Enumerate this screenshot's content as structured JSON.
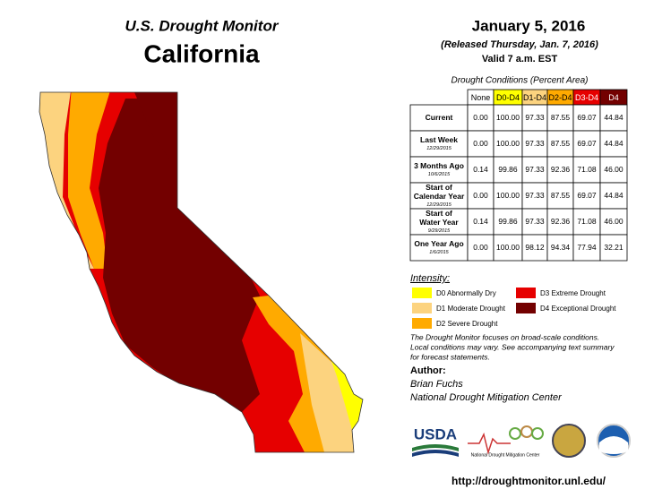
{
  "header": {
    "program": "U.S. Drought Monitor",
    "state": "California",
    "date": "January 5, 2016",
    "released": "(Released Thursday, Jan. 7, 2016)",
    "valid": "Valid 7 a.m. EST"
  },
  "table": {
    "caption": "Drought Conditions (Percent Area)",
    "columns": [
      "None",
      "D0-D4",
      "D1-D4",
      "D2-D4",
      "D3-D4",
      "D4"
    ],
    "rows": [
      {
        "label": [
          "Current"
        ],
        "values": [
          "0.00",
          "100.00",
          "97.33",
          "87.55",
          "69.07",
          "44.84"
        ]
      },
      {
        "label": [
          "Last Week"
        ],
        "date": "12/29/2015",
        "values": [
          "0.00",
          "100.00",
          "97.33",
          "87.55",
          "69.07",
          "44.84"
        ]
      },
      {
        "label": [
          "3 Months Ago"
        ],
        "date": "10/6/2015",
        "values": [
          "0.14",
          "99.86",
          "97.33",
          "92.36",
          "71.08",
          "46.00"
        ]
      },
      {
        "label": [
          "Start of",
          "Calendar Year"
        ],
        "date": "12/29/2015",
        "values": [
          "0.00",
          "100.00",
          "97.33",
          "87.55",
          "69.07",
          "44.84"
        ]
      },
      {
        "label": [
          "Start of",
          "Water Year"
        ],
        "date": "9/29/2015",
        "values": [
          "0.14",
          "99.86",
          "97.33",
          "92.36",
          "71.08",
          "46.00"
        ]
      },
      {
        "label": [
          "One Year Ago"
        ],
        "date": "1/6/2015",
        "values": [
          "0.00",
          "100.00",
          "98.12",
          "94.34",
          "77.94",
          "32.21"
        ]
      }
    ]
  },
  "legend": {
    "title": "Intensity:",
    "items": [
      {
        "label": "D0 Abnormally Dry",
        "color": "#ffff00"
      },
      {
        "label": "D1 Moderate Drought",
        "color": "#fcd37f"
      },
      {
        "label": "D2 Severe Drought",
        "color": "#ffaa00"
      },
      {
        "label": "D3 Extreme Drought",
        "color": "#e60000"
      },
      {
        "label": "D4 Exceptional Drought",
        "color": "#730000"
      }
    ]
  },
  "note": [
    "The Drought Monitor focuses on broad-scale conditions.",
    "Local conditions may vary. See accompanying text summary",
    "for forecast statements."
  ],
  "author": {
    "heading": "Author:",
    "name": "Brian Fuchs",
    "organization": "National Drought Mitigation Center"
  },
  "logos": {
    "usda": "USDA",
    "ndmc": "National Drought Mitigation Center"
  },
  "url": "http://droughtmonitor.unl.edu/"
}
